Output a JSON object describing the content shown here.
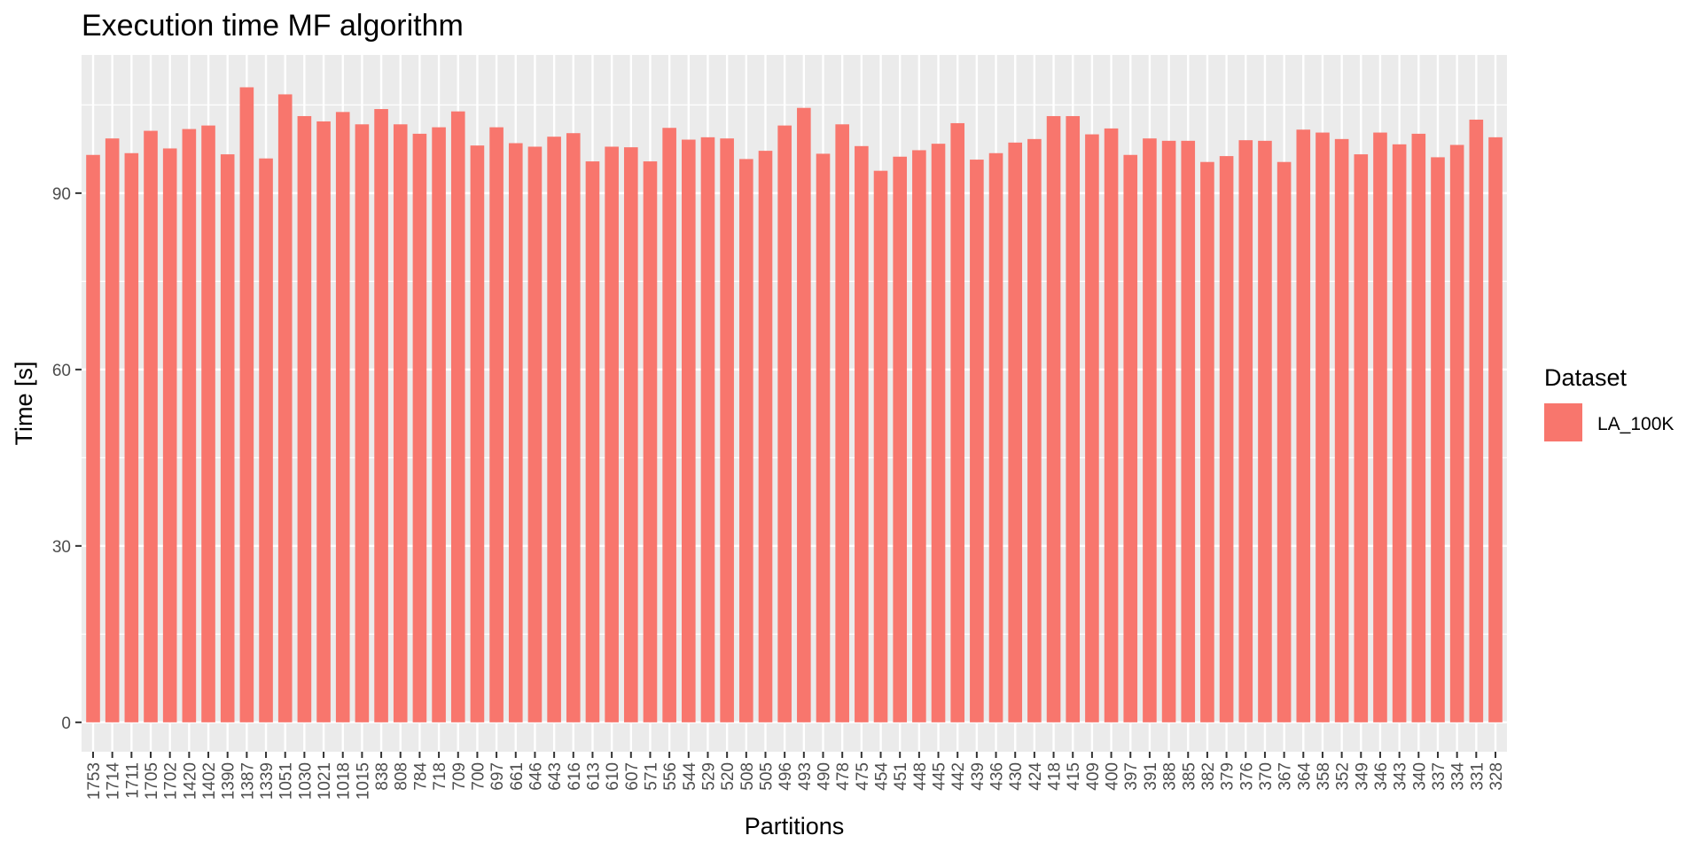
{
  "chart_data": {
    "type": "bar",
    "title": "Execution time MF algorithm",
    "xlabel": "Partitions",
    "ylabel": "Time [s]",
    "ylim": [
      -5,
      113.5
    ],
    "yticks": [
      0,
      30,
      60,
      90
    ],
    "grid": true,
    "legend": {
      "title": "Dataset",
      "placement": "right"
    },
    "categories": [
      "1753",
      "1714",
      "1711",
      "1705",
      "1702",
      "1420",
      "1402",
      "1390",
      "1387",
      "1339",
      "1051",
      "1030",
      "1021",
      "1018",
      "1015",
      "838",
      "808",
      "784",
      "718",
      "709",
      "700",
      "697",
      "661",
      "646",
      "643",
      "616",
      "613",
      "610",
      "607",
      "571",
      "556",
      "544",
      "529",
      "520",
      "508",
      "505",
      "496",
      "493",
      "490",
      "478",
      "475",
      "454",
      "451",
      "448",
      "445",
      "442",
      "439",
      "436",
      "430",
      "424",
      "418",
      "415",
      "409",
      "400",
      "397",
      "391",
      "388",
      "385",
      "382",
      "379",
      "376",
      "370",
      "367",
      "364",
      "358",
      "352",
      "349",
      "346",
      "343",
      "340",
      "337",
      "334",
      "331",
      "328"
    ],
    "series": [
      {
        "name": "LA_100K",
        "color": "#F8766D",
        "values": [
          96.5,
          99.3,
          96.8,
          100.6,
          97.6,
          100.9,
          101.5,
          96.6,
          108.0,
          95.9,
          106.8,
          103.1,
          102.2,
          103.8,
          101.7,
          104.3,
          101.7,
          100.1,
          101.2,
          103.9,
          98.1,
          101.2,
          98.5,
          97.9,
          99.6,
          100.2,
          95.4,
          97.9,
          97.8,
          95.4,
          101.1,
          99.1,
          99.5,
          99.3,
          95.8,
          97.2,
          101.5,
          104.5,
          96.7,
          101.7,
          98.0,
          93.8,
          96.2,
          97.3,
          98.4,
          101.9,
          95.7,
          96.8,
          98.6,
          99.2,
          103.1,
          103.1,
          100.0,
          101.0,
          96.5,
          99.3,
          98.9,
          98.9,
          95.3,
          96.3,
          99.0,
          98.9,
          95.3,
          100.8,
          100.3,
          99.2,
          96.6,
          100.3,
          98.3,
          100.1,
          96.1,
          98.2,
          102.5,
          99.5
        ]
      }
    ]
  },
  "colors": {
    "panel_bg": "#EBEBEB",
    "grid_major": "#FFFFFF",
    "bar": "#F8766D"
  }
}
